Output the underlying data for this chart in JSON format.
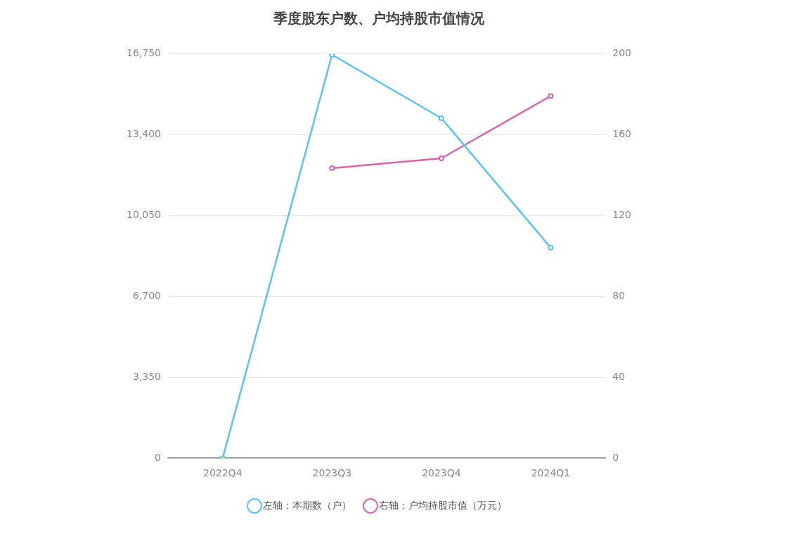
{
  "chart_data": {
    "type": "line",
    "title": "季度股东户数、户均持股市值情况",
    "categories": [
      "2022Q4",
      "2023Q3",
      "2023Q4",
      "2024Q1"
    ],
    "series": [
      {
        "name": "左轴：本期数（户）",
        "color": "#5bc2f5",
        "values": [
          0,
          16700,
          14070,
          8710
        ]
      },
      {
        "name": "右轴：户均持股市值（万元）",
        "color": "#d766ac",
        "values": [
          null,
          143.3,
          148.2,
          179.0
        ],
        "axis": "y2"
      }
    ],
    "ylim": [
      0,
      16750
    ],
    "yticks": [
      0,
      {
        "value": 3350,
        "label": "3,350"
      },
      {
        "value": 6700,
        "label": "6,700"
      },
      {
        "value": 10050,
        "label": "10,050"
      },
      {
        "value": 13400,
        "label": "13,400"
      },
      {
        "value": 16750,
        "label": "16,750"
      }
    ],
    "y2lim": [
      0,
      200
    ],
    "y2ticks": [
      0,
      40,
      80,
      120,
      160,
      200
    ],
    "grid": "y",
    "legend": "bottom",
    "marker": "circle",
    "line_style": "solid"
  }
}
